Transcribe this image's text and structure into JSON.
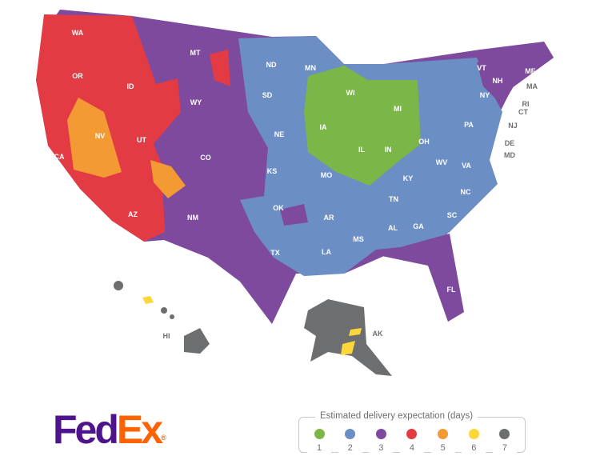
{
  "colors": {
    "1": "#7ab648",
    "2": "#6b8ec4",
    "3": "#7e4a9e",
    "4": "#e23b44",
    "5": "#f39a34",
    "6": "#fcd73a",
    "7": "#6d6e70"
  },
  "logo": {
    "part1": "Fed",
    "part2": "Ex",
    "mark": "®"
  },
  "legend": {
    "title": "Estimated delivery expectation (days)",
    "items": [
      {
        "days": "1",
        "color": "#7ab648"
      },
      {
        "days": "2",
        "color": "#6b8ec4"
      },
      {
        "days": "3",
        "color": "#7e4a9e"
      },
      {
        "days": "4",
        "color": "#e23b44"
      },
      {
        "days": "5",
        "color": "#f39a34"
      },
      {
        "days": "6",
        "color": "#fcd73a"
      },
      {
        "days": "7",
        "color": "#6d6e70"
      }
    ]
  },
  "states": [
    {
      "code": "WA"
    },
    {
      "code": "OR"
    },
    {
      "code": "ID"
    },
    {
      "code": "MT"
    },
    {
      "code": "WY"
    },
    {
      "code": "NV"
    },
    {
      "code": "UT"
    },
    {
      "code": "CA"
    },
    {
      "code": "AZ"
    },
    {
      "code": "CO"
    },
    {
      "code": "NM"
    },
    {
      "code": "ND"
    },
    {
      "code": "SD"
    },
    {
      "code": "NE"
    },
    {
      "code": "KS"
    },
    {
      "code": "OK"
    },
    {
      "code": "TX"
    },
    {
      "code": "MN"
    },
    {
      "code": "IA"
    },
    {
      "code": "MO"
    },
    {
      "code": "AR"
    },
    {
      "code": "LA"
    },
    {
      "code": "WI"
    },
    {
      "code": "IL"
    },
    {
      "code": "MI"
    },
    {
      "code": "IN"
    },
    {
      "code": "OH"
    },
    {
      "code": "KY"
    },
    {
      "code": "TN"
    },
    {
      "code": "MS"
    },
    {
      "code": "AL"
    },
    {
      "code": "GA"
    },
    {
      "code": "FL"
    },
    {
      "code": "SC"
    },
    {
      "code": "NC"
    },
    {
      "code": "VA"
    },
    {
      "code": "WV"
    },
    {
      "code": "PA"
    },
    {
      "code": "NY"
    },
    {
      "code": "VT"
    },
    {
      "code": "NH"
    },
    {
      "code": "ME"
    },
    {
      "code": "MA"
    },
    {
      "code": "RI"
    },
    {
      "code": "CT"
    },
    {
      "code": "NJ"
    },
    {
      "code": "DE"
    },
    {
      "code": "MD"
    },
    {
      "code": "HI"
    },
    {
      "code": "AK"
    }
  ]
}
